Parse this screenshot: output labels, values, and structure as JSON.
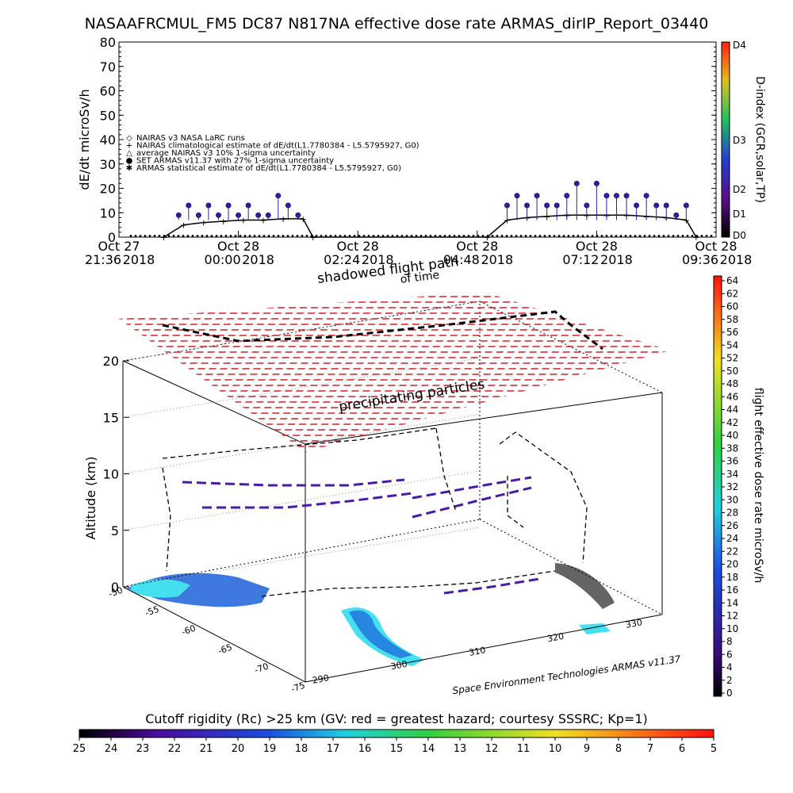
{
  "title": "NASAAFRCMUL_FM5 DC87 N817NA effective dose rate ARMAS_dirIP_Report_03440",
  "colors": {
    "nairas_line": "#000000",
    "armas_points": "#3a1b9e",
    "curtain": "#d0202a",
    "ocean": "#45e0f0",
    "land": "#1a60d8"
  },
  "chart_data": [
    {
      "type": "scatter",
      "ylabel": "dE/dt microSv/h",
      "ylim": [
        0,
        80
      ],
      "yticks": [
        0,
        10,
        20,
        30,
        40,
        50,
        60,
        70,
        80
      ],
      "xlim": [
        "2018-10-27 21:36",
        "2018-10-28 09:36"
      ],
      "xticks": [
        {
          "date": "Oct 27",
          "time": "21:36",
          "year": "2018",
          "t": "2018-10-27 21:36"
        },
        {
          "date": "Oct 28",
          "time": "00:00",
          "year": "2018",
          "t": "2018-10-28 00:00"
        },
        {
          "date": "Oct 28",
          "time": "02:24",
          "year": "2018",
          "t": "2018-10-28 02:24"
        },
        {
          "date": "Oct 28",
          "time": "04:48",
          "year": "2018",
          "t": "2018-10-28 04:48"
        },
        {
          "date": "Oct 28",
          "time": "07:12",
          "year": "2018",
          "t": "2018-10-28 07:12"
        },
        {
          "date": "Oct 28",
          "time": "09:36",
          "year": "2018",
          "t": "2018-10-28 09:36"
        }
      ],
      "legend_placement": "upper-left",
      "legend": [
        {
          "symbol": "◇",
          "label": "NAIRAS v3 NASA LaRC runs"
        },
        {
          "symbol": "+",
          "label": "NAIRAS climatological estimate of dE/dt(L1.7780384 - L5.5795927, G0)"
        },
        {
          "symbol": "△",
          "label": "average NAIRAS v3 10% 1-sigma uncertainty"
        },
        {
          "symbol": "●",
          "label": "SET ARMAS v11.37 with 27% 1-sigma uncertainty"
        },
        {
          "symbol": "✱",
          "label": "ARMAS statistical estimate of dE/dt(L1.7780384 - L5.5795927, G0)"
        }
      ],
      "series": [
        {
          "name": "NAIRAS climatological estimate of dE/dt(L1.7780384 - L5.5795927, G0)",
          "x": [
            "2018-10-27 22:30",
            "2018-10-27 22:54",
            "2018-10-27 23:18",
            "2018-10-27 23:42",
            "2018-10-28 00:06",
            "2018-10-28 00:30",
            "2018-10-28 00:54",
            "2018-10-28 01:18",
            "2018-10-28 01:30",
            "2018-10-28 05:00",
            "2018-10-28 05:24",
            "2018-10-28 05:48",
            "2018-10-28 06:12",
            "2018-10-28 06:36",
            "2018-10-28 07:00",
            "2018-10-28 07:24",
            "2018-10-28 07:48",
            "2018-10-28 08:12",
            "2018-10-28 08:36",
            "2018-10-28 09:00",
            "2018-10-28 09:12"
          ],
          "y": [
            0,
            5,
            6,
            6.5,
            7,
            7,
            7.5,
            7.5,
            0,
            0,
            7,
            8,
            8.5,
            9,
            9,
            9,
            9,
            8.5,
            8,
            7,
            0
          ]
        },
        {
          "name": "SET ARMAS v11.37 with 27% 1-sigma uncertainty",
          "x": [
            "2018-10-27 22:48",
            "2018-10-27 23:00",
            "2018-10-27 23:12",
            "2018-10-27 23:24",
            "2018-10-27 23:36",
            "2018-10-27 23:48",
            "2018-10-28 00:00",
            "2018-10-28 00:12",
            "2018-10-28 00:24",
            "2018-10-28 00:36",
            "2018-10-28 00:48",
            "2018-10-28 01:00",
            "2018-10-28 01:12",
            "2018-10-28 05:24",
            "2018-10-28 05:36",
            "2018-10-28 05:48",
            "2018-10-28 06:00",
            "2018-10-28 06:12",
            "2018-10-28 06:24",
            "2018-10-28 06:36",
            "2018-10-28 06:48",
            "2018-10-28 07:00",
            "2018-10-28 07:12",
            "2018-10-28 07:24",
            "2018-10-28 07:36",
            "2018-10-28 07:48",
            "2018-10-28 08:00",
            "2018-10-28 08:12",
            "2018-10-28 08:24",
            "2018-10-28 08:36",
            "2018-10-28 08:48",
            "2018-10-28 09:00"
          ],
          "y": [
            9,
            13,
            9,
            13,
            9,
            13,
            9,
            13,
            9,
            9,
            17,
            13,
            9,
            13,
            17,
            13,
            17,
            13,
            13,
            17,
            22,
            13,
            22,
            17,
            17,
            17,
            13,
            17,
            13,
            13,
            9,
            13
          ]
        }
      ],
      "dindex_colorbar": {
        "label": "D-index (GCR,solar,TP)",
        "ticks": [
          "D4",
          "D3",
          "D2",
          "D1",
          "D0"
        ]
      }
    },
    {
      "type": "heatmap",
      "annotations": [
        "shadowed flight path",
        "of time",
        "precipitating particles",
        "Space Environment Technologies ARMAS v11.37"
      ],
      "zlabel": "Altitude (km)",
      "zticks": [
        0,
        5,
        10,
        15,
        20
      ],
      "lat_ticks": [
        "-50",
        "-55",
        "-60",
        "-65",
        "-70",
        "-75"
      ],
      "lon_ticks": [
        "290",
        "300",
        "310",
        "320",
        "330"
      ],
      "right_colorbar": {
        "label": "flight effective dose rate microSv/h",
        "ticks": [
          "64",
          "62",
          "60",
          "58",
          "56",
          "54",
          "52",
          "50",
          "48",
          "46",
          "44",
          "42",
          "40",
          "38",
          "36",
          "34",
          "32",
          "30",
          "28",
          "26",
          "24",
          "22",
          "20",
          "18",
          "16",
          "14",
          "12",
          "10",
          "8",
          "6",
          "4",
          "2",
          "0"
        ]
      },
      "bottom_colorbar": {
        "label": "Cutoff rigidity (Rc) >25 km (GV: red = greatest hazard; courtesy SSSRC; Kp=1)",
        "ticks": [
          "25",
          "24",
          "23",
          "22",
          "21",
          "20",
          "19",
          "18",
          "17",
          "16",
          "15",
          "14",
          "13",
          "12",
          "11",
          "10",
          "9",
          "8",
          "7",
          "6",
          "5"
        ]
      }
    }
  ]
}
